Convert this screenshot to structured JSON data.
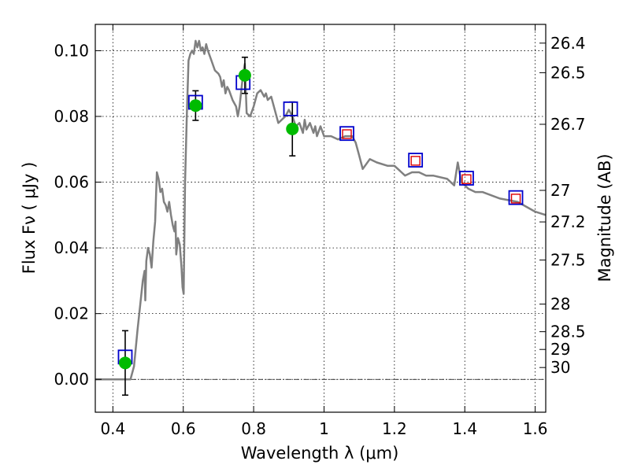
{
  "chart_data": {
    "type": "line",
    "xlabel": "Wavelength  λ (μm)",
    "ylabel": "Flux  Fν  ( μJy )",
    "y2label": "Magnitude (AB)",
    "xlim": [
      0.35,
      1.63
    ],
    "ylim": [
      -0.01,
      0.108
    ],
    "grid": true,
    "x_ticks": [
      {
        "value": 0.4,
        "label": "0.4"
      },
      {
        "value": 0.6,
        "label": "0.6"
      },
      {
        "value": 0.8,
        "label": "0.8"
      },
      {
        "value": 1.0,
        "label": "1"
      },
      {
        "value": 1.2,
        "label": "1.2"
      },
      {
        "value": 1.4,
        "label": "1.4"
      },
      {
        "value": 1.6,
        "label": "1.6"
      }
    ],
    "y_ticks": [
      {
        "value": 0.0,
        "label": "0.00"
      },
      {
        "value": 0.02,
        "label": "0.02"
      },
      {
        "value": 0.04,
        "label": "0.04"
      },
      {
        "value": 0.06,
        "label": "0.06"
      },
      {
        "value": 0.08,
        "label": "0.08"
      },
      {
        "value": 0.1,
        "label": "0.10"
      }
    ],
    "y2_ticks": [
      {
        "flux": 0.1023,
        "label": "26.4"
      },
      {
        "flux": 0.0933,
        "label": "26.5"
      },
      {
        "flux": 0.0776,
        "label": "26.7"
      },
      {
        "flux": 0.0575,
        "label": "27"
      },
      {
        "flux": 0.0479,
        "label": "27.2"
      },
      {
        "flux": 0.0363,
        "label": "27.5"
      },
      {
        "flux": 0.0229,
        "label": "28"
      },
      {
        "flux": 0.0145,
        "label": "28.5"
      },
      {
        "flux": 0.0091,
        "label": "29"
      },
      {
        "flux": 0.0036,
        "label": "30"
      }
    ],
    "zero_line": 0,
    "colors": {
      "model": "#808080",
      "observed": "#00bb00",
      "model_box": "#0000cc",
      "synthetic_box": "#dd0000",
      "errorbar": "#000000"
    },
    "series": [
      {
        "type": "line",
        "points": [
          [
            0.35,
            0.0
          ],
          [
            0.45,
            0.0
          ],
          [
            0.46,
            0.004
          ],
          [
            0.47,
            0.015
          ],
          [
            0.48,
            0.025
          ],
          [
            0.485,
            0.03
          ],
          [
            0.49,
            0.033
          ],
          [
            0.492,
            0.024
          ],
          [
            0.495,
            0.036
          ],
          [
            0.5,
            0.04
          ],
          [
            0.505,
            0.038
          ],
          [
            0.51,
            0.034
          ],
          [
            0.515,
            0.042
          ],
          [
            0.52,
            0.048
          ],
          [
            0.525,
            0.063
          ],
          [
            0.53,
            0.061
          ],
          [
            0.535,
            0.057
          ],
          [
            0.54,
            0.058
          ],
          [
            0.545,
            0.054
          ],
          [
            0.55,
            0.053
          ],
          [
            0.555,
            0.051
          ],
          [
            0.56,
            0.054
          ],
          [
            0.565,
            0.05
          ],
          [
            0.57,
            0.047
          ],
          [
            0.575,
            0.045
          ],
          [
            0.578,
            0.048
          ],
          [
            0.58,
            0.038
          ],
          [
            0.585,
            0.043
          ],
          [
            0.59,
            0.041
          ],
          [
            0.595,
            0.034
          ],
          [
            0.598,
            0.028
          ],
          [
            0.601,
            0.026
          ],
          [
            0.605,
            0.06
          ],
          [
            0.61,
            0.08
          ],
          [
            0.615,
            0.097
          ],
          [
            0.62,
            0.099
          ],
          [
            0.625,
            0.1
          ],
          [
            0.63,
            0.099
          ],
          [
            0.635,
            0.103
          ],
          [
            0.64,
            0.101
          ],
          [
            0.645,
            0.103
          ],
          [
            0.65,
            0.1
          ],
          [
            0.655,
            0.101
          ],
          [
            0.66,
            0.099
          ],
          [
            0.665,
            0.102
          ],
          [
            0.67,
            0.1
          ],
          [
            0.68,
            0.097
          ],
          [
            0.69,
            0.094
          ],
          [
            0.7,
            0.093
          ],
          [
            0.705,
            0.092
          ],
          [
            0.71,
            0.089
          ],
          [
            0.715,
            0.091
          ],
          [
            0.72,
            0.087
          ],
          [
            0.725,
            0.089
          ],
          [
            0.73,
            0.088
          ],
          [
            0.74,
            0.085
          ],
          [
            0.75,
            0.083
          ],
          [
            0.755,
            0.08
          ],
          [
            0.76,
            0.083
          ],
          [
            0.77,
            0.093
          ],
          [
            0.775,
            0.096
          ],
          [
            0.78,
            0.081
          ],
          [
            0.79,
            0.08
          ],
          [
            0.8,
            0.083
          ],
          [
            0.81,
            0.087
          ],
          [
            0.82,
            0.088
          ],
          [
            0.83,
            0.086
          ],
          [
            0.835,
            0.087
          ],
          [
            0.84,
            0.085
          ],
          [
            0.85,
            0.086
          ],
          [
            0.86,
            0.082
          ],
          [
            0.87,
            0.078
          ],
          [
            0.88,
            0.079
          ],
          [
            0.89,
            0.08
          ],
          [
            0.9,
            0.082
          ],
          [
            0.91,
            0.08
          ],
          [
            0.92,
            0.077
          ],
          [
            0.93,
            0.078
          ],
          [
            0.94,
            0.075
          ],
          [
            0.945,
            0.079
          ],
          [
            0.95,
            0.076
          ],
          [
            0.96,
            0.078
          ],
          [
            0.97,
            0.075
          ],
          [
            0.975,
            0.077
          ],
          [
            0.98,
            0.074
          ],
          [
            0.99,
            0.077
          ],
          [
            1.0,
            0.074
          ],
          [
            1.02,
            0.074
          ],
          [
            1.04,
            0.073
          ],
          [
            1.06,
            0.074
          ],
          [
            1.08,
            0.074
          ],
          [
            1.09,
            0.072
          ],
          [
            1.1,
            0.068
          ],
          [
            1.105,
            0.066
          ],
          [
            1.11,
            0.064
          ],
          [
            1.13,
            0.067
          ],
          [
            1.15,
            0.066
          ],
          [
            1.18,
            0.065
          ],
          [
            1.2,
            0.065
          ],
          [
            1.22,
            0.063
          ],
          [
            1.23,
            0.062
          ],
          [
            1.25,
            0.063
          ],
          [
            1.27,
            0.063
          ],
          [
            1.29,
            0.062
          ],
          [
            1.31,
            0.062
          ],
          [
            1.35,
            0.061
          ],
          [
            1.37,
            0.059
          ],
          [
            1.38,
            0.066
          ],
          [
            1.39,
            0.06
          ],
          [
            1.41,
            0.058
          ],
          [
            1.43,
            0.057
          ],
          [
            1.45,
            0.057
          ],
          [
            1.5,
            0.055
          ],
          [
            1.55,
            0.054
          ],
          [
            1.6,
            0.051
          ],
          [
            1.63,
            0.05
          ]
        ]
      },
      {
        "type": "points",
        "marker": "circle",
        "points": [
          {
            "x": 0.435,
            "y": 0.005,
            "err": 0.0098
          },
          {
            "x": 0.635,
            "y": 0.0833,
            "err": 0.0045
          },
          {
            "x": 0.775,
            "y": 0.0925,
            "err": 0.0055
          },
          {
            "x": 0.91,
            "y": 0.0762,
            "err": 0.0082
          }
        ]
      },
      {
        "type": "points",
        "marker": "square",
        "points": [
          {
            "x": 0.435,
            "y": 0.0068
          },
          {
            "x": 0.635,
            "y": 0.0843
          },
          {
            "x": 0.77,
            "y": 0.0903
          },
          {
            "x": 0.905,
            "y": 0.0823
          },
          {
            "x": 1.065,
            "y": 0.0748
          },
          {
            "x": 1.26,
            "y": 0.0667
          },
          {
            "x": 1.405,
            "y": 0.0612
          },
          {
            "x": 1.545,
            "y": 0.0553
          }
        ]
      },
      {
        "type": "points",
        "marker": "square",
        "points": [
          {
            "x": 1.065,
            "y": 0.0746
          },
          {
            "x": 1.26,
            "y": 0.0665
          },
          {
            "x": 1.405,
            "y": 0.0609
          },
          {
            "x": 1.545,
            "y": 0.055
          }
        ]
      }
    ]
  }
}
